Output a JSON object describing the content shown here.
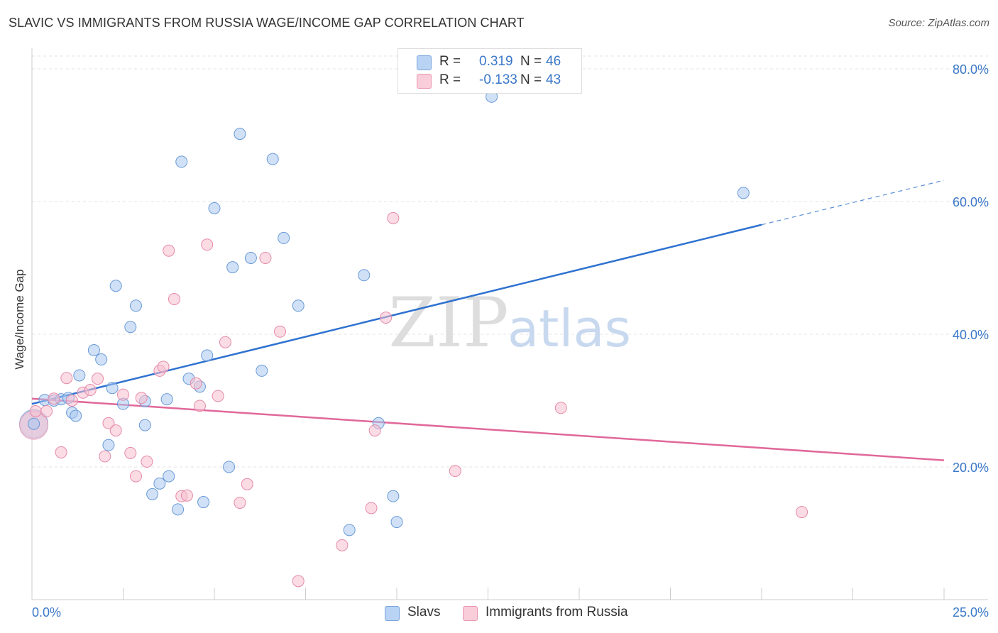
{
  "title": "SLAVIC VS IMMIGRANTS FROM RUSSIA WAGE/INCOME GAP CORRELATION CHART",
  "source": "Source: ZipAtlas.com",
  "watermark": {
    "zip": "ZIP",
    "atlas": "atlas"
  },
  "legend": {
    "r_label": "R =",
    "n_label": "N =",
    "items": [
      {
        "name": "Slavs",
        "r": "0.319",
        "n": "46",
        "color": "#a9c9f0",
        "stroke": "#7ba6df"
      },
      {
        "name": "Immigrants from Russia",
        "r": "-0.133",
        "n": "43",
        "color": "#f7bfd0",
        "stroke": "#ea98b2"
      }
    ]
  },
  "chart_data": {
    "type": "scatter",
    "title": "SLAVIC VS IMMIGRANTS FROM RUSSIA WAGE/INCOME GAP CORRELATION CHART",
    "xlabel": "",
    "ylabel": "Wage/Income Gap",
    "xlim": [
      0,
      25
    ],
    "ylim": [
      0,
      80
    ],
    "x_tick_labels": [
      "0.0%",
      "25.0%"
    ],
    "y_ticks": [
      20,
      40,
      60,
      80
    ],
    "y_tick_labels": [
      "20.0%",
      "40.0%",
      "60.0%",
      "80.0%"
    ],
    "series": [
      {
        "name": "Slavs",
        "color": "#a9c9f0",
        "stroke": "#6a9ad6",
        "trend": {
          "x0": 0,
          "y0": 29.5,
          "x1": 20,
          "y1": 56.5,
          "x_dash_end": 25,
          "y_dash_end": 63.2,
          "color": "#2f72d0"
        },
        "points": [
          [
            0.05,
            26.5
          ],
          [
            0.35,
            30.1
          ],
          [
            0.6,
            30.0
          ],
          [
            0.8,
            30.2
          ],
          [
            1.0,
            30.4
          ],
          [
            1.1,
            28.2
          ],
          [
            1.2,
            27.7
          ],
          [
            1.3,
            33.8
          ],
          [
            1.7,
            37.6
          ],
          [
            1.9,
            36.2
          ],
          [
            2.1,
            23.3
          ],
          [
            2.2,
            31.9
          ],
          [
            2.3,
            47.3
          ],
          [
            2.5,
            29.5
          ],
          [
            2.7,
            41.1
          ],
          [
            2.85,
            44.3
          ],
          [
            3.1,
            29.9
          ],
          [
            3.1,
            26.3
          ],
          [
            3.3,
            15.9
          ],
          [
            3.5,
            17.5
          ],
          [
            3.7,
            30.2
          ],
          [
            3.75,
            18.6
          ],
          [
            4.0,
            13.6
          ],
          [
            4.1,
            66.0
          ],
          [
            4.3,
            33.3
          ],
          [
            4.6,
            32.1
          ],
          [
            4.7,
            14.7
          ],
          [
            4.8,
            36.8
          ],
          [
            5.0,
            59.0
          ],
          [
            5.4,
            20.0
          ],
          [
            5.5,
            50.1
          ],
          [
            5.7,
            70.2
          ],
          [
            6.0,
            51.5
          ],
          [
            6.3,
            34.5
          ],
          [
            6.6,
            66.4
          ],
          [
            6.9,
            54.5
          ],
          [
            7.3,
            44.3
          ],
          [
            8.7,
            10.5
          ],
          [
            9.1,
            48.9
          ],
          [
            9.5,
            26.6
          ],
          [
            9.9,
            15.6
          ],
          [
            10.0,
            11.7
          ],
          [
            12.6,
            75.8
          ],
          [
            19.5,
            61.3
          ]
        ]
      },
      {
        "name": "Immigrants from Russia",
        "color": "#f7bfd0",
        "stroke": "#e58aa9",
        "trend": {
          "x0": 0,
          "y0": 30.3,
          "x1": 25,
          "y1": 21.0,
          "color": "#e0689a"
        },
        "points": [
          [
            0.1,
            28.4
          ],
          [
            0.4,
            28.4
          ],
          [
            0.6,
            30.3
          ],
          [
            0.8,
            22.2
          ],
          [
            0.95,
            33.4
          ],
          [
            1.1,
            30.0
          ],
          [
            1.4,
            31.2
          ],
          [
            1.6,
            31.6
          ],
          [
            1.8,
            33.3
          ],
          [
            2.0,
            21.6
          ],
          [
            2.1,
            26.6
          ],
          [
            2.3,
            25.5
          ],
          [
            2.5,
            30.9
          ],
          [
            2.7,
            22.1
          ],
          [
            2.85,
            18.6
          ],
          [
            3.0,
            30.4
          ],
          [
            3.15,
            20.8
          ],
          [
            3.5,
            34.5
          ],
          [
            3.6,
            35.1
          ],
          [
            3.75,
            52.6
          ],
          [
            3.9,
            45.3
          ],
          [
            4.1,
            15.6
          ],
          [
            4.25,
            15.7
          ],
          [
            4.5,
            32.6
          ],
          [
            4.6,
            29.2
          ],
          [
            4.8,
            53.5
          ],
          [
            5.1,
            30.7
          ],
          [
            5.3,
            38.8
          ],
          [
            5.7,
            14.6
          ],
          [
            5.9,
            17.4
          ],
          [
            6.4,
            51.5
          ],
          [
            6.8,
            40.4
          ],
          [
            7.3,
            2.8
          ],
          [
            8.5,
            8.2
          ],
          [
            9.3,
            13.8
          ],
          [
            9.4,
            25.5
          ],
          [
            9.7,
            42.5
          ],
          [
            9.9,
            57.5
          ],
          [
            11.6,
            19.4
          ],
          [
            14.5,
            28.9
          ],
          [
            21.1,
            13.2
          ]
        ]
      }
    ],
    "large_points": [
      {
        "series": "Slavs",
        "x": 0.05,
        "y": 26.5
      },
      {
        "series": "Immigrants from Russia",
        "x": 0.05,
        "y": 26.3
      }
    ]
  }
}
